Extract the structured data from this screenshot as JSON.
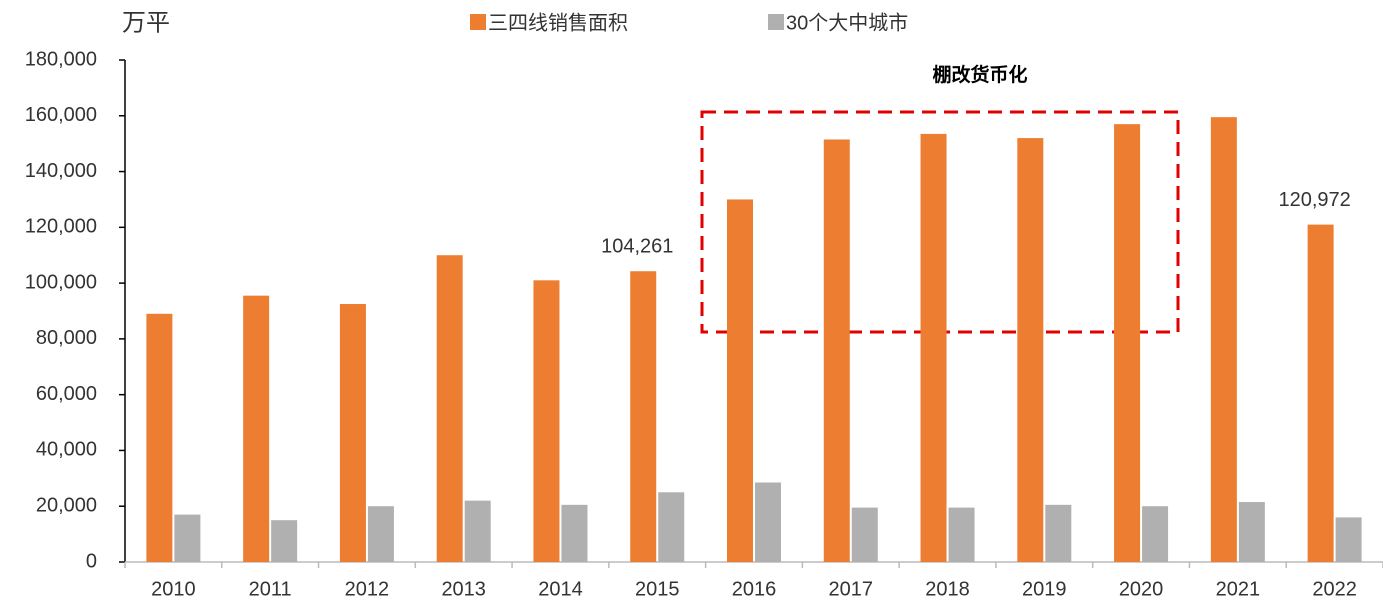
{
  "chart_data": {
    "type": "bar",
    "unit_label": "万平",
    "annotation": "棚改货币化",
    "categories": [
      "2010",
      "2011",
      "2012",
      "2013",
      "2014",
      "2015",
      "2016",
      "2017",
      "2018",
      "2019",
      "2020",
      "2021",
      "2022"
    ],
    "series": [
      {
        "name": "三四线销售面积",
        "color": "#ed7d31",
        "values": [
          89000,
          95500,
          92500,
          110000,
          101000,
          104261,
          130000,
          151500,
          153500,
          152000,
          157000,
          159500,
          120972
        ],
        "value_labels": [
          null,
          null,
          null,
          null,
          null,
          "104,261",
          null,
          null,
          null,
          null,
          null,
          null,
          "120,972"
        ]
      },
      {
        "name": "30个大中城市",
        "color": "#b0b0b0",
        "values": [
          17000,
          15000,
          20000,
          22000,
          20500,
          25000,
          28500,
          19500,
          19500,
          20500,
          20000,
          21500,
          16000
        ]
      }
    ],
    "ylim": [
      0,
      180000
    ],
    "yticks": [
      0,
      {
        "value": 20000,
        "label": "20,000"
      },
      {
        "value": 40000,
        "label": "40,000"
      },
      {
        "value": 60000,
        "label": "60,000"
      },
      {
        "value": 80000,
        "label": "80,000"
      },
      {
        "value": 100000,
        "label": "100,000"
      },
      {
        "value": 120000,
        "label": "120,000"
      },
      {
        "value": 140000,
        "label": "140,000"
      },
      {
        "value": 160000,
        "label": "160,000"
      },
      {
        "value": 180000,
        "label": "180,000"
      }
    ],
    "grid": false,
    "legend": "top"
  }
}
